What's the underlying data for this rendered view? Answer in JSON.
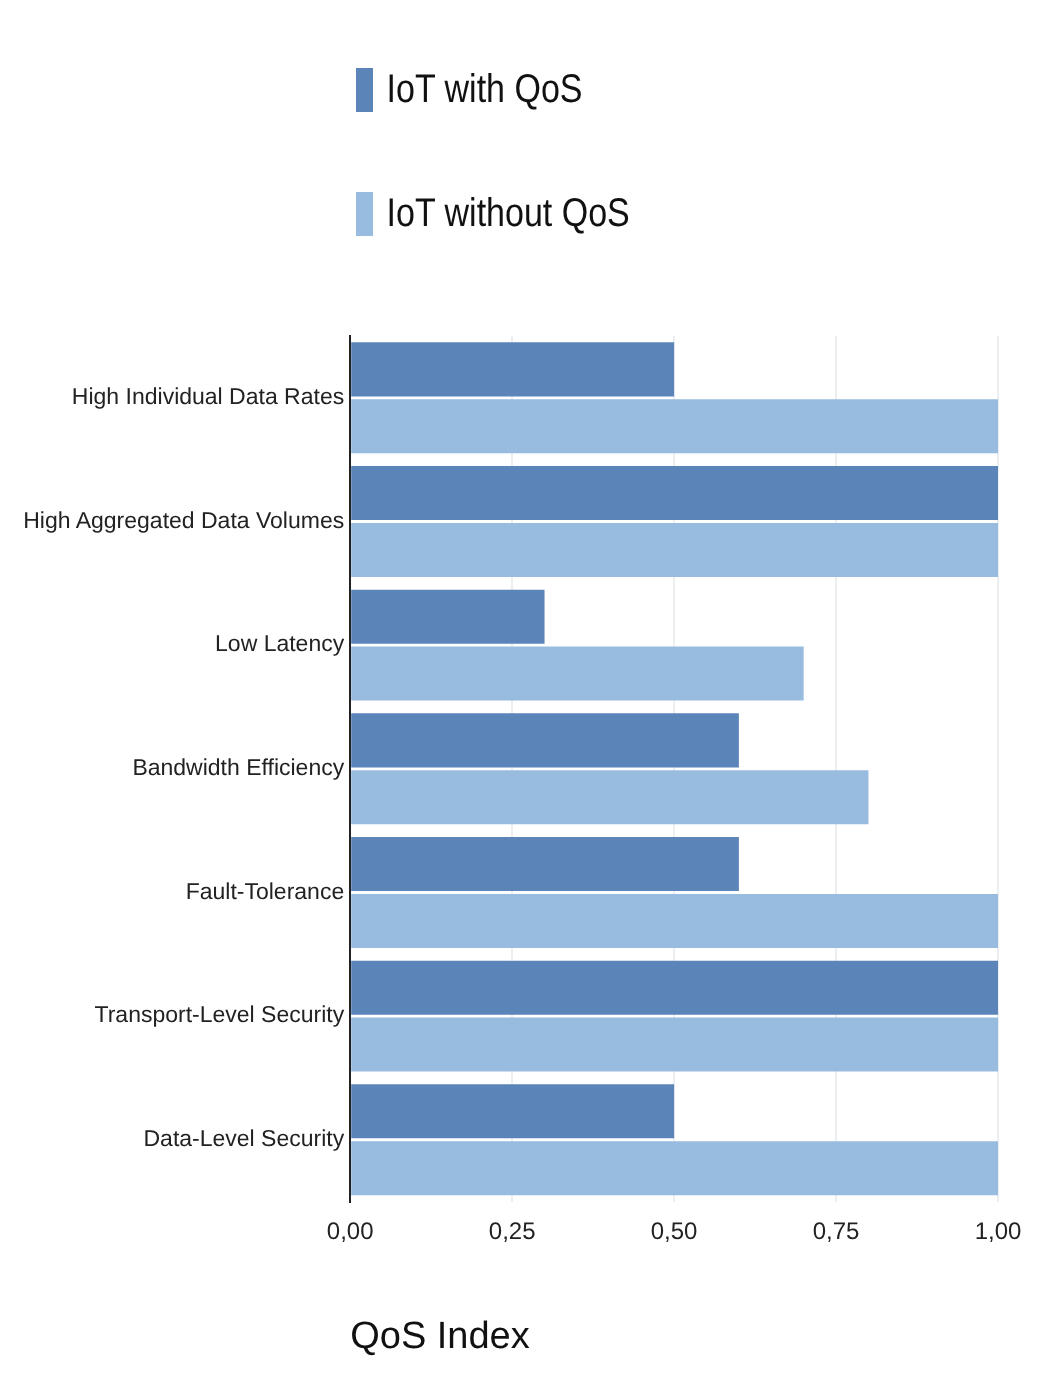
{
  "chart_data": {
    "type": "bar",
    "orientation": "horizontal",
    "xlabel": "QoS Index",
    "categories": [
      "High Individual Data Rates",
      "High Aggregated Data Volumes",
      "Low Latency",
      "Bandwidth Efficiency",
      "Fault-Tolerance",
      "Transport-Level Security",
      "Data-Level Security"
    ],
    "series": [
      {
        "name": "IoT with QoS",
        "color": "#5b84b8",
        "values": [
          0.5,
          1.0,
          0.3,
          0.6,
          0.6,
          1.0,
          0.5
        ]
      },
      {
        "name": "IoT without QoS",
        "color": "#98bbe0",
        "values": [
          1.0,
          1.0,
          0.7,
          0.8,
          1.0,
          1.0,
          1.0
        ]
      }
    ],
    "xlim": [
      0,
      1
    ],
    "xticks": [
      {
        "value": 0,
        "label": "0,00"
      },
      {
        "value": 0.25,
        "label": "0,25"
      },
      {
        "value": 0.5,
        "label": "0,50"
      },
      {
        "value": 0.75,
        "label": "0,75"
      },
      {
        "value": 1,
        "label": "1,00"
      }
    ],
    "grid": "x",
    "legend": "top"
  }
}
